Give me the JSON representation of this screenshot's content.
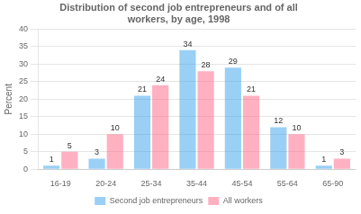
{
  "chart_data": {
    "type": "bar",
    "title": "Distribution of second job entrepreneurs and of all\nworkers, by age, 1998",
    "categories": [
      "16-19",
      "20-24",
      "25-34",
      "35-44",
      "45-54",
      "55-64",
      "65-90"
    ],
    "series": [
      {
        "name": "Second job entrepreneurs",
        "values": [
          1,
          3,
          21,
          34,
          29,
          12,
          1
        ]
      },
      {
        "name": "All workers",
        "values": [
          5,
          10,
          24,
          28,
          21,
          10,
          3
        ]
      }
    ],
    "ylabel": "Percent",
    "ylim": [
      0,
      40
    ],
    "yticks": [
      0,
      5,
      10,
      15,
      20,
      25,
      30,
      35,
      40
    ],
    "grid": true,
    "legend": "bottom",
    "data_labels": true
  }
}
